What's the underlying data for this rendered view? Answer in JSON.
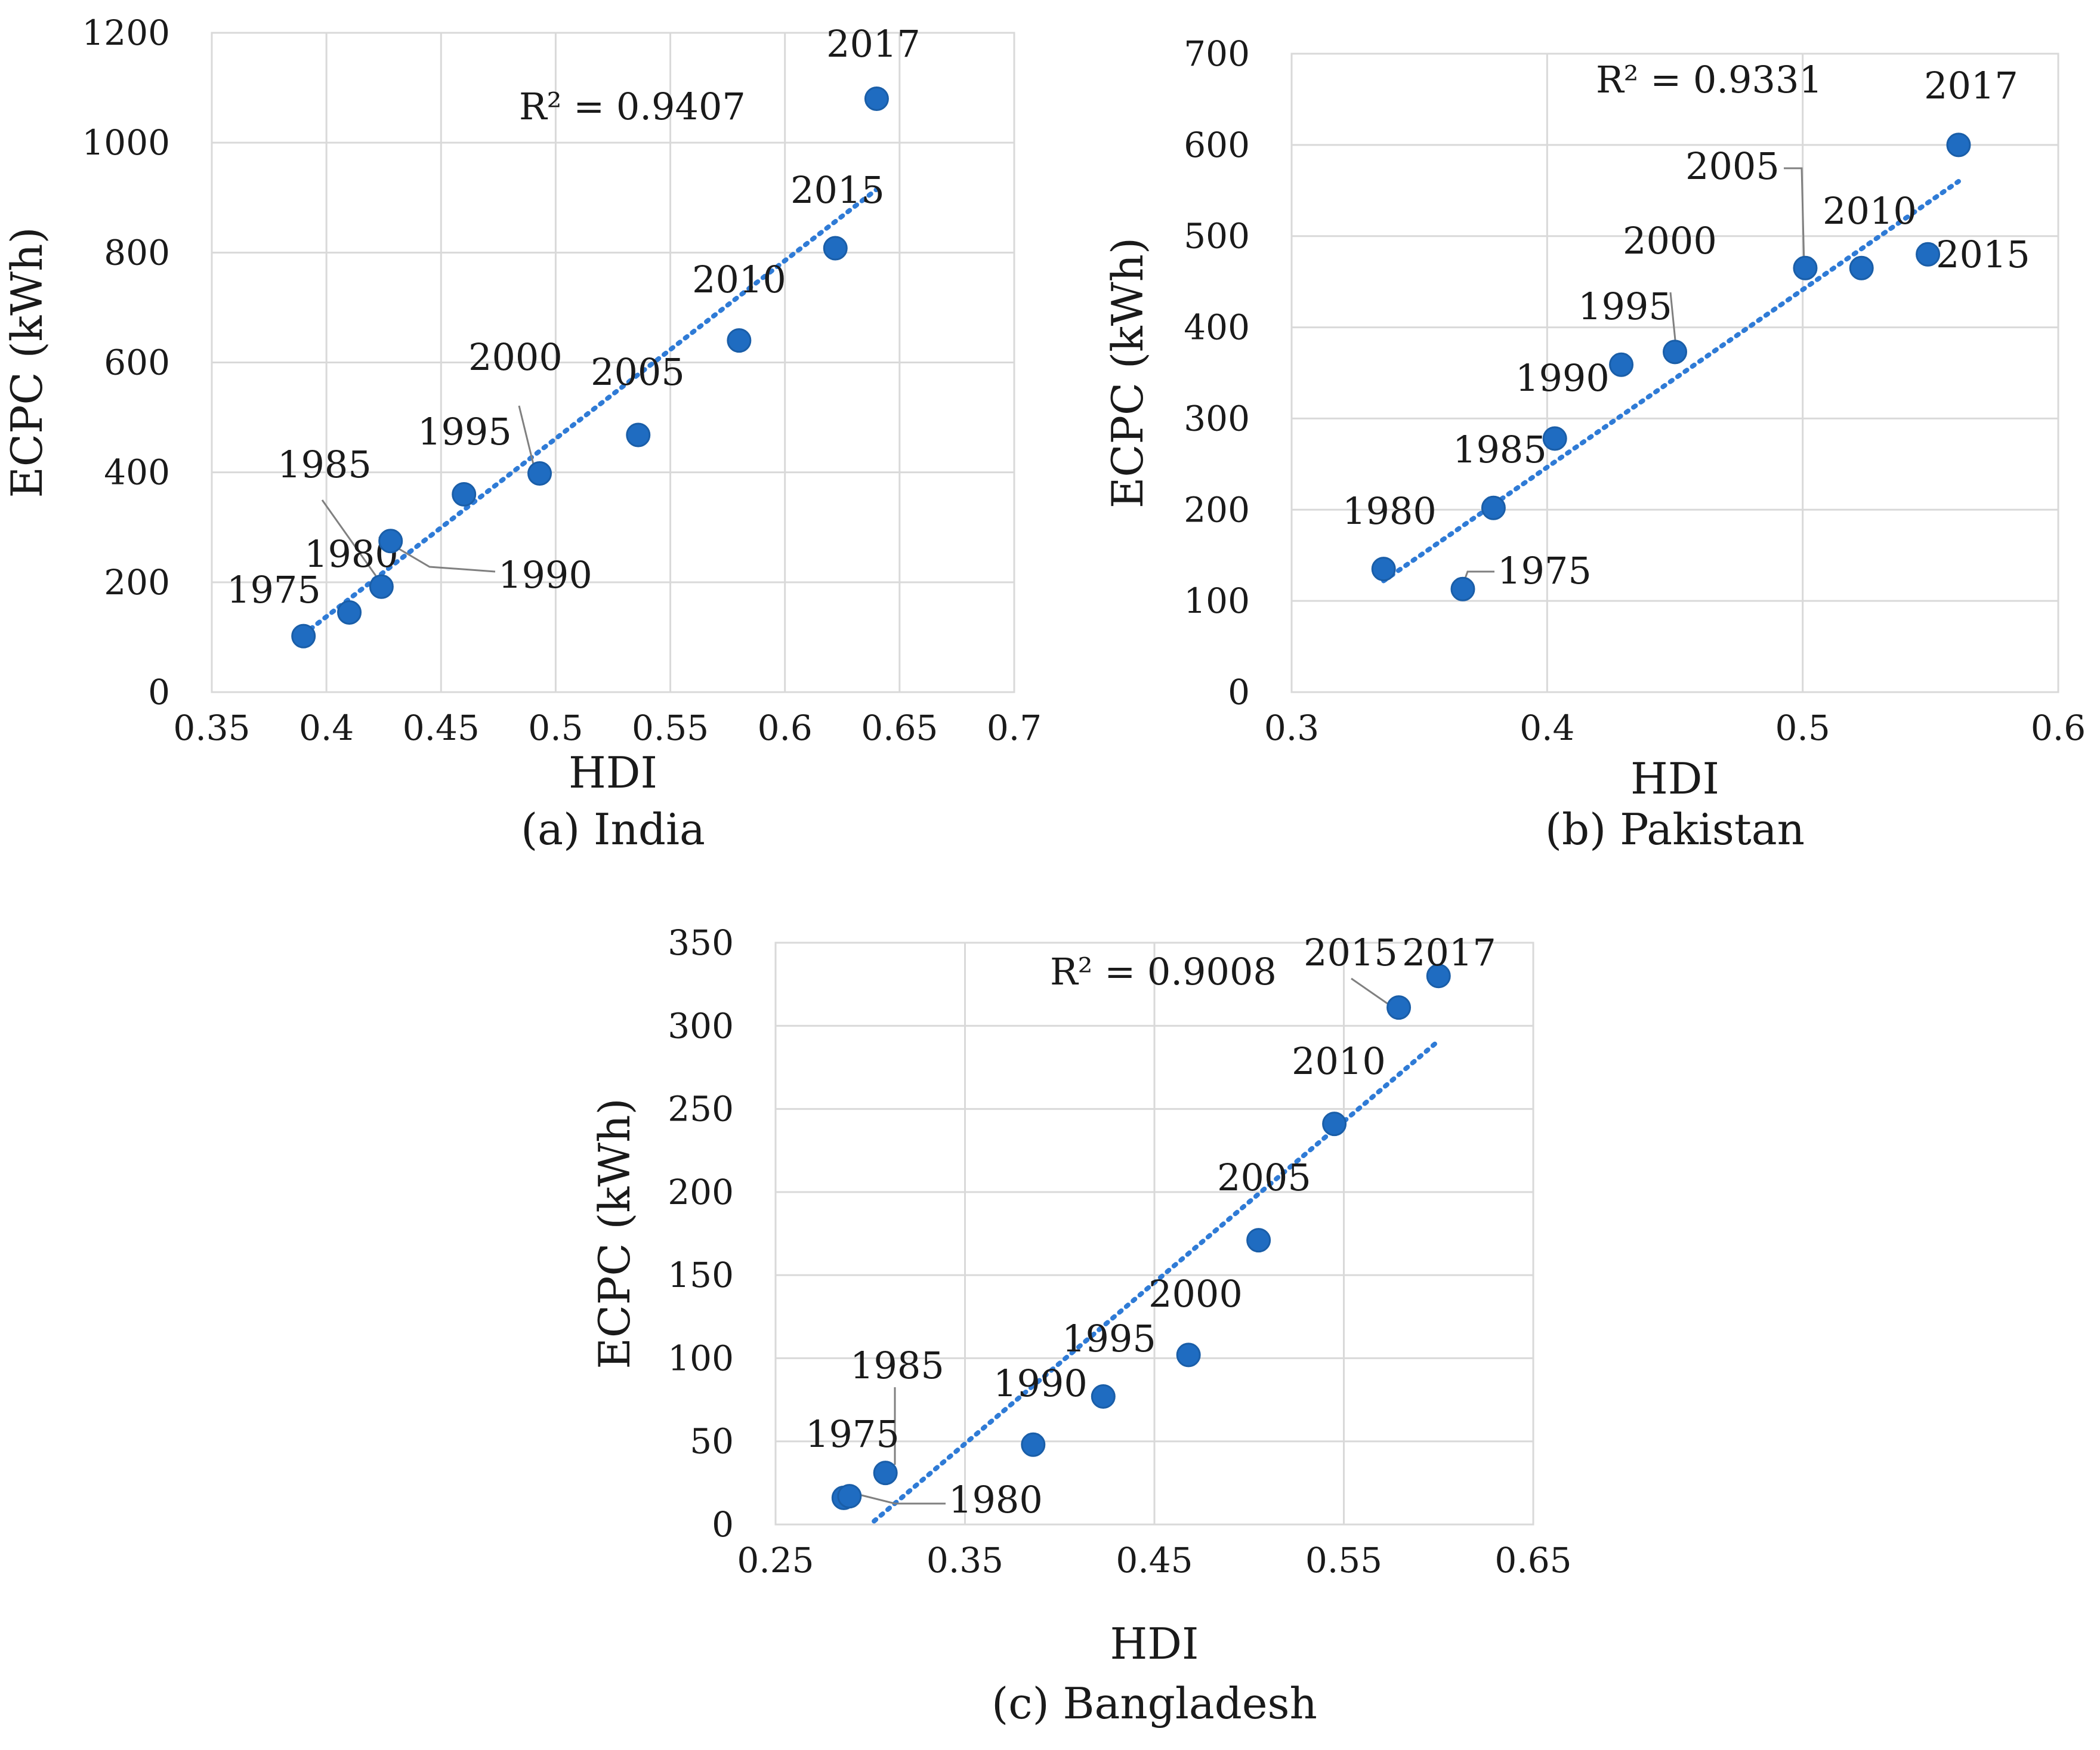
{
  "chart_data": [
    {
      "type": "scatter",
      "id": "india",
      "caption": "(a) India",
      "xlabel": "HDI",
      "ylabel": "ECPC (kWh)",
      "xlim": [
        0.35,
        0.7
      ],
      "ylim": [
        0,
        1200
      ],
      "xticks": [
        0.35,
        0.4,
        0.45,
        0.5,
        0.55,
        0.6,
        0.65,
        0.7
      ],
      "xtick_labels": [
        "0.35",
        "0.4",
        "0.45",
        "0.5",
        "0.55",
        "0.6",
        "0.65",
        "0.7"
      ],
      "yticks": [
        0,
        200,
        400,
        600,
        800,
        1000,
        1200
      ],
      "ytick_labels": [
        "0",
        "200",
        "400",
        "600",
        "800",
        "1000",
        "1200"
      ],
      "r2_label": "R² = 0.9407",
      "trendline": {
        "x": [
          0.39,
          0.64
        ],
        "y": [
          105,
          915
        ]
      },
      "points": [
        {
          "label": "1975",
          "x": 0.39,
          "y": 102
        },
        {
          "label": "1980",
          "x": 0.41,
          "y": 145
        },
        {
          "label": "1985",
          "x": 0.428,
          "y": 275
        },
        {
          "label": "1990",
          "x": 0.424,
          "y": 192
        },
        {
          "label": "1995",
          "x": 0.46,
          "y": 360
        },
        {
          "label": "2000",
          "x": 0.493,
          "y": 398
        },
        {
          "label": "2005",
          "x": 0.536,
          "y": 468
        },
        {
          "label": "2010",
          "x": 0.58,
          "y": 640
        },
        {
          "label": "2015",
          "x": 0.622,
          "y": 808
        },
        {
          "label": "2017",
          "x": 0.64,
          "y": 1080
        }
      ]
    },
    {
      "type": "scatter",
      "id": "pakistan",
      "caption": "(b) Pakistan",
      "xlabel": "HDI",
      "ylabel": "ECPC (kWh)",
      "xlim": [
        0.3,
        0.6
      ],
      "ylim": [
        0,
        700
      ],
      "xticks": [
        0.3,
        0.4,
        0.5,
        0.6
      ],
      "xtick_labels": [
        "0.3",
        "0.4",
        "0.5",
        "0.6"
      ],
      "yticks": [
        0,
        100,
        200,
        300,
        400,
        500,
        600,
        700
      ],
      "ytick_labels": [
        "0",
        "100",
        "200",
        "300",
        "400",
        "500",
        "600",
        "700"
      ],
      "r2_label": "R² = 0.9331",
      "trendline": {
        "x": [
          0.336,
          0.561
        ],
        "y": [
          122,
          560
        ]
      },
      "points": [
        {
          "label": "1975",
          "x": 0.367,
          "y": 113
        },
        {
          "label": "1980",
          "x": 0.336,
          "y": 135
        },
        {
          "label": "1985",
          "x": 0.379,
          "y": 202
        },
        {
          "label": "1990",
          "x": 0.403,
          "y": 278
        },
        {
          "label": "1995",
          "x": 0.429,
          "y": 359
        },
        {
          "label": "2000",
          "x": 0.45,
          "y": 373
        },
        {
          "label": "2005",
          "x": 0.501,
          "y": 465
        },
        {
          "label": "2010",
          "x": 0.523,
          "y": 465
        },
        {
          "label": "2015",
          "x": 0.549,
          "y": 480
        },
        {
          "label": "2017",
          "x": 0.561,
          "y": 600
        }
      ]
    },
    {
      "type": "scatter",
      "id": "bangladesh",
      "caption": "(c) Bangladesh",
      "xlabel": "HDI",
      "ylabel": "ECPC (kWh)",
      "xlim": [
        0.25,
        0.65
      ],
      "ylim": [
        0,
        350
      ],
      "xticks": [
        0.25,
        0.35,
        0.45,
        0.55,
        0.65
      ],
      "xtick_labels": [
        "0.25",
        "0.35",
        "0.45",
        "0.55",
        "0.65"
      ],
      "yticks": [
        0,
        50,
        100,
        150,
        200,
        250,
        300,
        350
      ],
      "ytick_labels": [
        "0",
        "50",
        "100",
        "150",
        "200",
        "250",
        "300",
        "350"
      ],
      "r2_label": "R² = 0.9008",
      "trendline": {
        "x": [
          0.302,
          0.6
        ],
        "y": [
          2,
          291
        ]
      },
      "points": [
        {
          "label": "1975",
          "x": 0.286,
          "y": 16
        },
        {
          "label": "1980",
          "x": 0.289,
          "y": 17
        },
        {
          "label": "1985",
          "x": 0.308,
          "y": 31
        },
        {
          "label": "1990",
          "x": 0.386,
          "y": 48
        },
        {
          "label": "1995",
          "x": 0.423,
          "y": 77
        },
        {
          "label": "2000",
          "x": 0.468,
          "y": 102
        },
        {
          "label": "2005",
          "x": 0.505,
          "y": 171
        },
        {
          "label": "2010",
          "x": 0.545,
          "y": 241
        },
        {
          "label": "2015",
          "x": 0.579,
          "y": 311
        },
        {
          "label": "2017",
          "x": 0.6,
          "y": 330
        }
      ]
    }
  ]
}
